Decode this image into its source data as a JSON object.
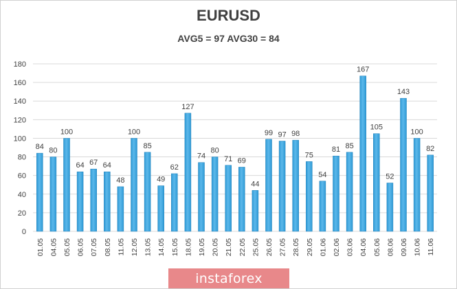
{
  "chart_data": {
    "type": "bar",
    "title": "EURUSD",
    "subtitle": "AVG5 = 97 AVG30 = 84",
    "categories": [
      "01.05",
      "04.05",
      "05.05",
      "06.05",
      "07.05",
      "08.05",
      "11.05",
      "12.05",
      "13.05",
      "14.05",
      "15.05",
      "18.05",
      "19.05",
      "20.05",
      "21.05",
      "22.05",
      "25.05",
      "26.05",
      "27.05",
      "28.05",
      "29.05",
      "01.06",
      "02.06",
      "03.06",
      "04.06",
      "05.06",
      "08.06",
      "09.06",
      "10.06",
      "11.06"
    ],
    "values": [
      84,
      80,
      100,
      64,
      67,
      64,
      48,
      100,
      85,
      49,
      62,
      127,
      74,
      80,
      71,
      69,
      44,
      99,
      97,
      98,
      75,
      54,
      81,
      85,
      167,
      105,
      52,
      143,
      100,
      82
    ],
    "ylim": [
      0,
      180
    ],
    "yticks": [
      0,
      20,
      40,
      60,
      80,
      100,
      120,
      140,
      160,
      180
    ],
    "grid": true,
    "legend": "none",
    "bar_color": "#2e9ad6",
    "bar_color_light": "#5cb8ea",
    "gridline_color": "#d9d9d9"
  },
  "watermark": "instaforex"
}
